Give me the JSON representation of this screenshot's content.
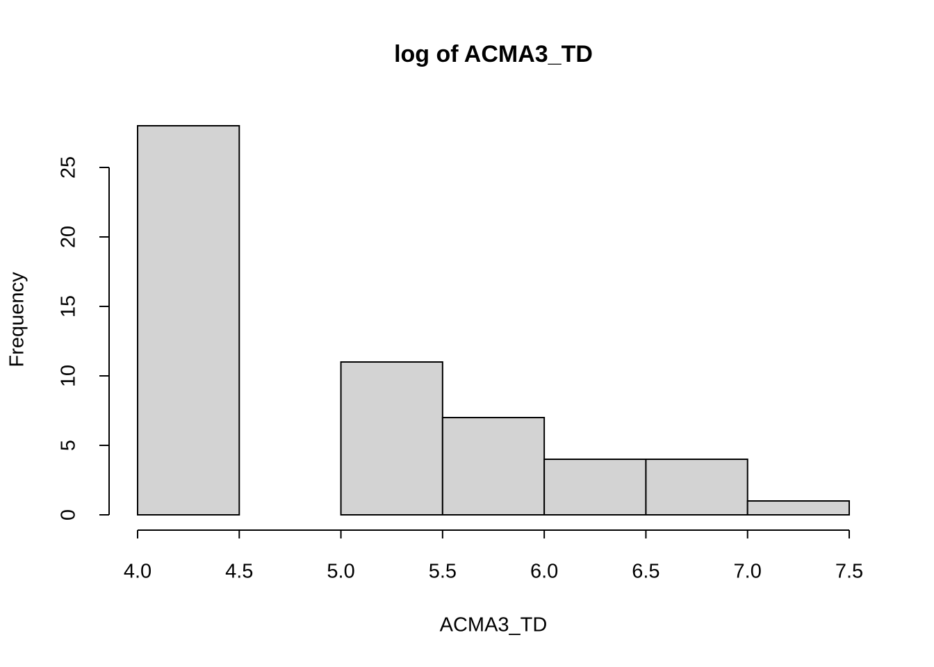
{
  "chart_data": {
    "type": "histogram",
    "title": "log of ACMA3_TD",
    "x_label": "ACMA3_TD",
    "y_label": "Frequency",
    "bins": [
      4,
      4.5,
      5,
      5.5,
      6,
      6.5,
      7,
      7.5
    ],
    "values": [
      28,
      0,
      11,
      7,
      4,
      4,
      1
    ],
    "color": "#d3d3d3",
    "xlim": [
      4,
      7.5
    ],
    "xticks": [
      {
        "value": 4,
        "label": "4.0"
      },
      4.5,
      {
        "value": 5,
        "label": "5.0"
      },
      5.5,
      {
        "value": 6,
        "label": "6.0"
      },
      6.5,
      {
        "value": 7,
        "label": "7.0"
      },
      7.5
    ],
    "ylim": [
      0,
      28
    ],
    "yticks": [
      0,
      5,
      10,
      15,
      20,
      25
    ]
  }
}
